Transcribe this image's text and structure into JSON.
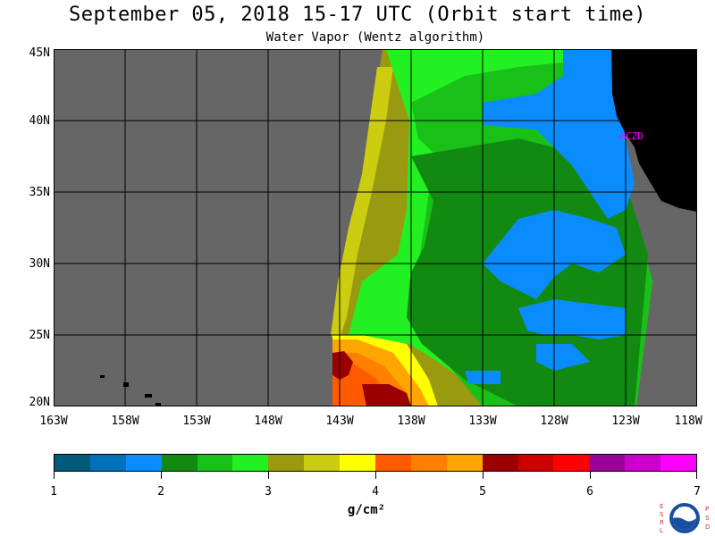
{
  "title": "September 05, 2018  15-17 UTC  (Orbit start time)",
  "subtitle": "Water Vapor (Wentz algorithm)",
  "y_axis_labels": [
    "45N",
    "40N",
    "35N",
    "30N",
    "25N",
    "20N"
  ],
  "x_axis_labels": [
    "163W",
    "158W",
    "153W",
    "148W",
    "143W",
    "138W",
    "133W",
    "128W",
    "123W",
    "118W"
  ],
  "station_label": "CZD",
  "colorbar": {
    "colors": [
      "#005a7a",
      "#0070b8",
      "#0a8cff",
      "#128a12",
      "#18c018",
      "#22f022",
      "#9a9a10",
      "#cccc10",
      "#ffff00",
      "#ff5a00",
      "#ff8000",
      "#ffa500",
      "#9a0000",
      "#cc0000",
      "#ff0000",
      "#9a009a",
      "#cc00cc",
      "#ff00ff"
    ],
    "tick_labels": [
      "1",
      "2",
      "3",
      "4",
      "5",
      "6",
      "7"
    ],
    "units": "g/cm²"
  },
  "logo": {
    "left_letters": [
      "E",
      "S",
      "R",
      "L"
    ],
    "right_letters": [
      "P",
      "S",
      "D"
    ],
    "center": "NOAA"
  }
}
